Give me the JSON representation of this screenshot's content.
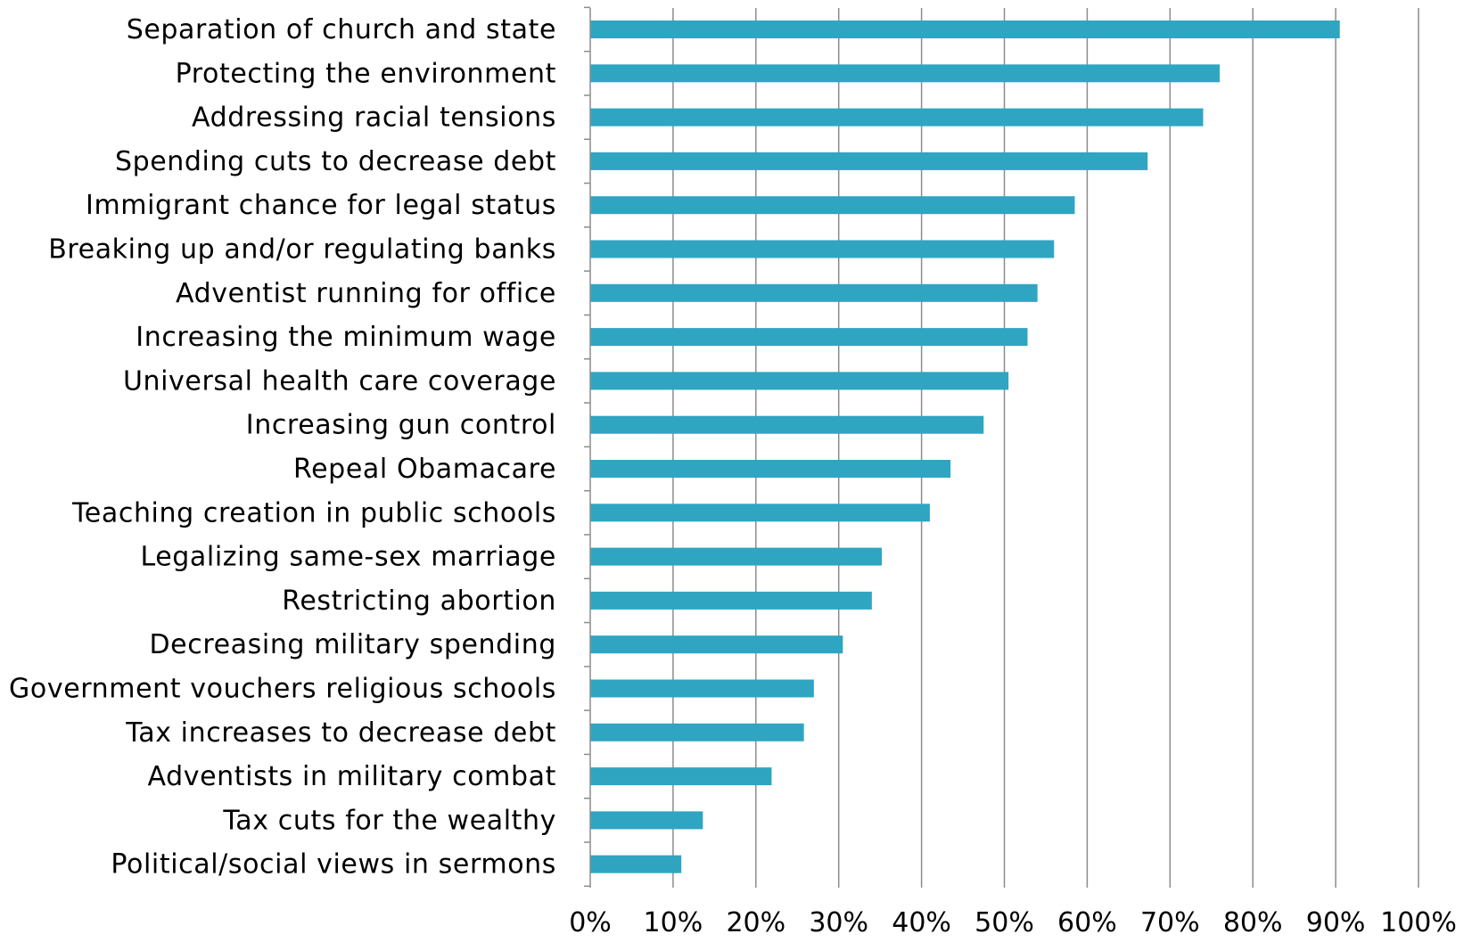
{
  "chart_data": {
    "type": "bar",
    "orientation": "horizontal",
    "categories": [
      "Separation of church and state",
      "Protecting the environment",
      "Addressing racial tensions",
      "Spending cuts to decrease debt",
      "Immigrant chance for legal status",
      "Breaking up and/or regulating banks",
      "Adventist running for office",
      "Increasing the minimum wage",
      "Universal health care coverage",
      "Increasing gun control",
      "Repeal Obamacare",
      "Teaching creation in public schools",
      "Legalizing same-sex marriage",
      "Restricting abortion",
      "Decreasing military spending",
      "Government vouchers religious schools",
      "Tax increases to decrease debt",
      "Adventists in military combat",
      "Tax cuts for the wealthy",
      "Political/social views in sermons"
    ],
    "values": [
      90.5,
      76,
      74,
      67.3,
      58.5,
      56,
      54,
      52.8,
      50.5,
      47.5,
      43.5,
      41,
      35.2,
      34,
      30.5,
      27,
      25.8,
      21.9,
      13.6,
      11
    ],
    "xlim": [
      0,
      100
    ],
    "xticks": [
      "0%",
      "10%",
      "20%",
      "30%",
      "40%",
      "50%",
      "60%",
      "70%",
      "80%",
      "90%",
      "100%"
    ],
    "grid": "vertical",
    "bar_color": "#2fa5c2",
    "title": "",
    "xlabel": "",
    "ylabel": ""
  }
}
